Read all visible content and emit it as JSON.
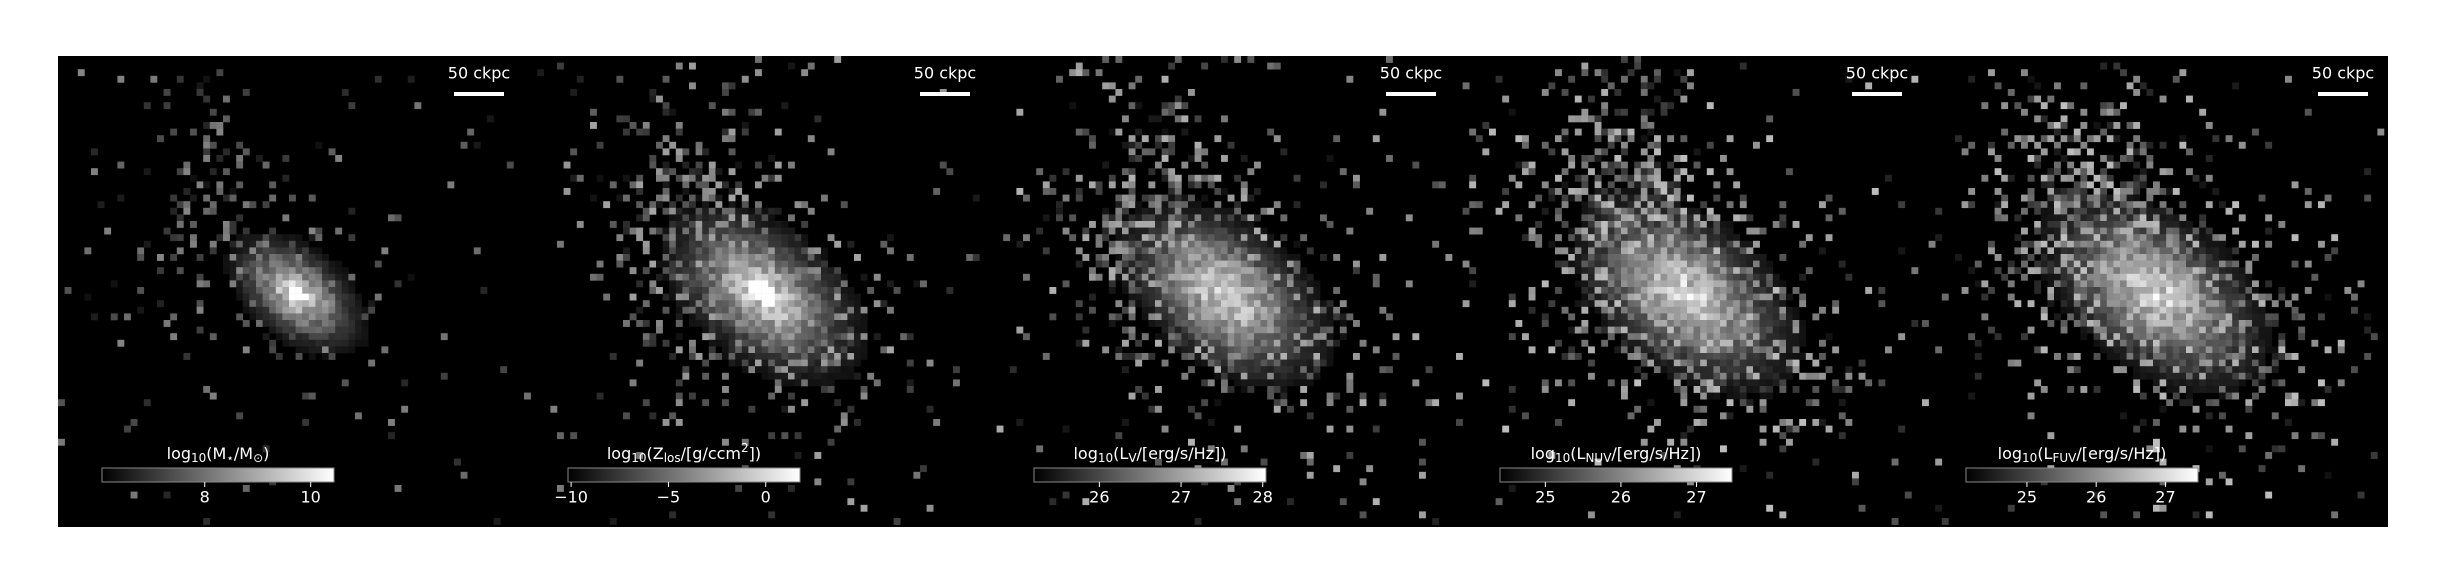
{
  "chart_data": [
    {
      "type": "image",
      "scalebar_label": "50 ckpc",
      "colorbar_label": [
        "log",
        "10",
        "(M",
        "⋆",
        "/M",
        "⊙",
        ")"
      ],
      "colorbar_label_style": [
        "normal",
        "sub",
        "normal",
        "sub",
        "normal",
        "sub",
        "normal"
      ],
      "clim": [
        6.06,
        10.44
      ],
      "cticks": [
        8,
        10
      ],
      "colormap": [
        "#000000",
        "#ffffff"
      ]
    },
    {
      "type": "image",
      "scalebar_label": "50 ckpc",
      "colorbar_label": [
        "log",
        "10",
        "(Z",
        "los",
        "/[g/ccm",
        "2",
        "])"
      ],
      "colorbar_label_style": [
        "normal",
        "sub",
        "normal",
        "sub",
        "normal",
        "sup",
        "normal"
      ],
      "clim": [
        -10.16,
        1.76
      ],
      "cticks": [
        {
          "value": -10,
          "label": "−10"
        },
        {
          "value": -5,
          "label": "−5"
        },
        0
      ],
      "colormap": [
        "#000000",
        "#ffffff"
      ]
    },
    {
      "type": "image",
      "scalebar_label": "50 ckpc",
      "colorbar_label": [
        "log",
        "10",
        "(L",
        "V",
        "/[erg/s/Hz])"
      ],
      "colorbar_label_style": [
        "normal",
        "sub",
        "normal",
        "sub",
        "normal"
      ],
      "clim": [
        25.2,
        28.04
      ],
      "cticks": [
        26,
        27,
        28
      ],
      "colormap": [
        "#000000",
        "#ffffff"
      ]
    },
    {
      "type": "image",
      "scalebar_label": "50 ckpc",
      "colorbar_label": [
        "log",
        "10",
        "(L",
        "NUV",
        "/[erg/s/Hz])"
      ],
      "colorbar_label_style": [
        "normal",
        "sub",
        "normal",
        "sub",
        "normal"
      ],
      "clim": [
        24.4,
        27.47
      ],
      "cticks": [
        25,
        26,
        27
      ],
      "colormap": [
        "#000000",
        "#ffffff"
      ]
    },
    {
      "type": "image",
      "scalebar_label": "50 ckpc",
      "colorbar_label": [
        "log",
        "10",
        "(L",
        "FUV",
        "/[erg/s/Hz])"
      ],
      "colorbar_label_style": [
        "normal",
        "sub",
        "normal",
        "sub",
        "normal"
      ],
      "clim": [
        24.12,
        27.47
      ],
      "cticks": [
        25,
        26,
        27
      ],
      "colormap": [
        "#000000",
        "#ffffff"
      ]
    }
  ]
}
